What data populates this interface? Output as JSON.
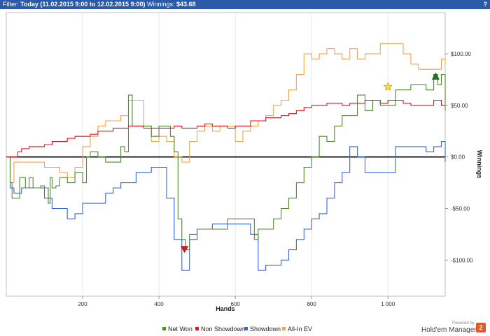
{
  "header": {
    "filter_label": "Filter:",
    "filter_value": "Today (11.02.2015 9:00 to 12.02.2015 9:00)",
    "winnings_label": "Winnings:",
    "winnings_value": "$43.68",
    "help_label": "?"
  },
  "brand": {
    "powered_by": "Powered by",
    "name": "Hold'em Manager",
    "logo_text": "2"
  },
  "chart_data": {
    "type": "line",
    "xlabel": "Hands",
    "ylabel": "Winnings",
    "xlim": [
      0,
      1150
    ],
    "ylim": [
      -135,
      140
    ],
    "xticks": [
      200,
      400,
      600,
      800,
      1000
    ],
    "xtick_labels": [
      "200",
      "400",
      "600",
      "800",
      "1 000"
    ],
    "yticks": [
      100,
      50,
      0,
      -50,
      -100
    ],
    "ytick_labels": [
      "$100.00",
      "$50.00",
      "$0.00",
      "-$50.00",
      "-$100.00"
    ],
    "grid": "x",
    "legend_position": "bottom",
    "series": [
      {
        "name": "Net Won",
        "color": "#4e8a2c",
        "x": [
          0,
          5,
          10,
          15,
          30,
          35,
          40,
          50,
          55,
          60,
          70,
          80,
          90,
          100,
          110,
          115,
          120,
          130,
          140,
          160,
          180,
          190,
          200,
          210,
          220,
          240,
          260,
          280,
          300,
          310,
          320,
          330,
          340,
          360,
          380,
          400,
          420,
          430,
          440,
          450,
          460,
          470,
          480,
          490,
          500,
          520,
          540,
          560,
          580,
          600,
          620,
          640,
          650,
          660,
          680,
          700,
          720,
          740,
          760,
          780,
          800,
          820,
          840,
          860,
          880,
          900,
          920,
          940,
          960,
          980,
          1000,
          1020,
          1040,
          1060,
          1080,
          1100,
          1120,
          1130,
          1140,
          1150
        ],
        "y": [
          0,
          0,
          -25,
          -40,
          -40,
          -20,
          -20,
          -30,
          -30,
          -20,
          -30,
          -30,
          -28,
          -30,
          -45,
          -20,
          -30,
          -28,
          -20,
          -25,
          -15,
          -15,
          -25,
          0,
          5,
          0,
          -5,
          -5,
          10,
          5,
          60,
          30,
          30,
          30,
          20,
          30,
          30,
          20,
          5,
          -60,
          -80,
          -90,
          -75,
          -75,
          -70,
          -70,
          -70,
          -70,
          -60,
          -60,
          -60,
          -60,
          -80,
          -70,
          -70,
          -60,
          -50,
          -40,
          -25,
          -10,
          0,
          20,
          15,
          30,
          40,
          40,
          60,
          45,
          55,
          50,
          50,
          65,
          65,
          70,
          70,
          65,
          80,
          70,
          80,
          45
        ]
      },
      {
        "name": "Non Showdown",
        "color": "#e8101a",
        "x": [
          0,
          10,
          20,
          30,
          40,
          60,
          80,
          100,
          120,
          140,
          160,
          180,
          200,
          220,
          240,
          260,
          280,
          300,
          320,
          340,
          360,
          380,
          400,
          420,
          440,
          460,
          480,
          500,
          520,
          540,
          560,
          580,
          600,
          620,
          640,
          660,
          680,
          700,
          720,
          740,
          760,
          780,
          800,
          820,
          840,
          860,
          880,
          900,
          920,
          940,
          960,
          980,
          1000,
          1020,
          1040,
          1060,
          1080,
          1100,
          1120,
          1140,
          1150
        ],
        "y": [
          0,
          0,
          0,
          5,
          8,
          10,
          10,
          12,
          15,
          15,
          18,
          20,
          20,
          22,
          25,
          25,
          28,
          28,
          30,
          30,
          28,
          28,
          28,
          28,
          30,
          28,
          28,
          30,
          32,
          30,
          30,
          28,
          30,
          30,
          35,
          35,
          38,
          38,
          40,
          42,
          45,
          48,
          50,
          50,
          52,
          52,
          50,
          52,
          52,
          55,
          55,
          52,
          55,
          55,
          52,
          50,
          50,
          50,
          55,
          50,
          50
        ]
      },
      {
        "name": "Showdown",
        "color": "#3565d6",
        "x": [
          0,
          10,
          20,
          40,
          60,
          80,
          100,
          120,
          140,
          160,
          180,
          200,
          220,
          240,
          260,
          280,
          300,
          320,
          340,
          360,
          380,
          400,
          420,
          440,
          460,
          470,
          480,
          500,
          520,
          540,
          560,
          580,
          600,
          620,
          640,
          660,
          680,
          700,
          720,
          740,
          760,
          780,
          800,
          820,
          840,
          860,
          880,
          900,
          920,
          940,
          960,
          980,
          1000,
          1020,
          1040,
          1060,
          1080,
          1100,
          1120,
          1140,
          1150
        ],
        "y": [
          0,
          -30,
          -35,
          -30,
          -30,
          -30,
          -40,
          -50,
          -50,
          -60,
          -55,
          -45,
          -45,
          -45,
          -35,
          -30,
          -25,
          -25,
          -15,
          -15,
          -10,
          -10,
          -40,
          -80,
          -110,
          -110,
          -80,
          -70,
          -70,
          -65,
          -65,
          -65,
          -65,
          -65,
          -75,
          -110,
          -105,
          -105,
          -100,
          -90,
          -80,
          -70,
          -60,
          -55,
          -40,
          -25,
          -15,
          10,
          0,
          -15,
          -15,
          -15,
          -15,
          10,
          10,
          10,
          10,
          5,
          10,
          15,
          -5
        ]
      },
      {
        "name": "All-In EV",
        "color": "#f3a24a",
        "x": [
          0,
          10,
          20,
          40,
          60,
          80,
          100,
          120,
          140,
          160,
          180,
          200,
          220,
          240,
          260,
          280,
          300,
          320,
          340,
          360,
          380,
          400,
          420,
          440,
          460,
          480,
          500,
          520,
          540,
          560,
          580,
          600,
          620,
          640,
          660,
          680,
          700,
          720,
          740,
          760,
          780,
          800,
          820,
          840,
          860,
          880,
          900,
          920,
          940,
          960,
          980,
          1000,
          1020,
          1040,
          1060,
          1080,
          1100,
          1120,
          1140,
          1150
        ],
        "y": [
          0,
          -25,
          -5,
          -5,
          -5,
          -5,
          -10,
          -10,
          -15,
          -20,
          -10,
          10,
          20,
          30,
          35,
          35,
          40,
          55,
          55,
          30,
          15,
          20,
          15,
          0,
          -5,
          15,
          25,
          30,
          25,
          30,
          30,
          15,
          25,
          30,
          35,
          40,
          50,
          55,
          65,
          80,
          100,
          95,
          100,
          105,
          100,
          95,
          105,
          95,
          100,
          100,
          110,
          110,
          110,
          100,
          90,
          85,
          85,
          85,
          95,
          90
        ]
      }
    ],
    "markers": [
      {
        "type": "triangle-down",
        "x": 467,
        "y": -90,
        "color": "#dd1b1b"
      },
      {
        "type": "triangle-up",
        "x": 1125,
        "y": 78,
        "color": "#1a7a1a"
      },
      {
        "type": "star",
        "x": 1000,
        "y": 68,
        "color": "#ffe24a"
      }
    ]
  }
}
